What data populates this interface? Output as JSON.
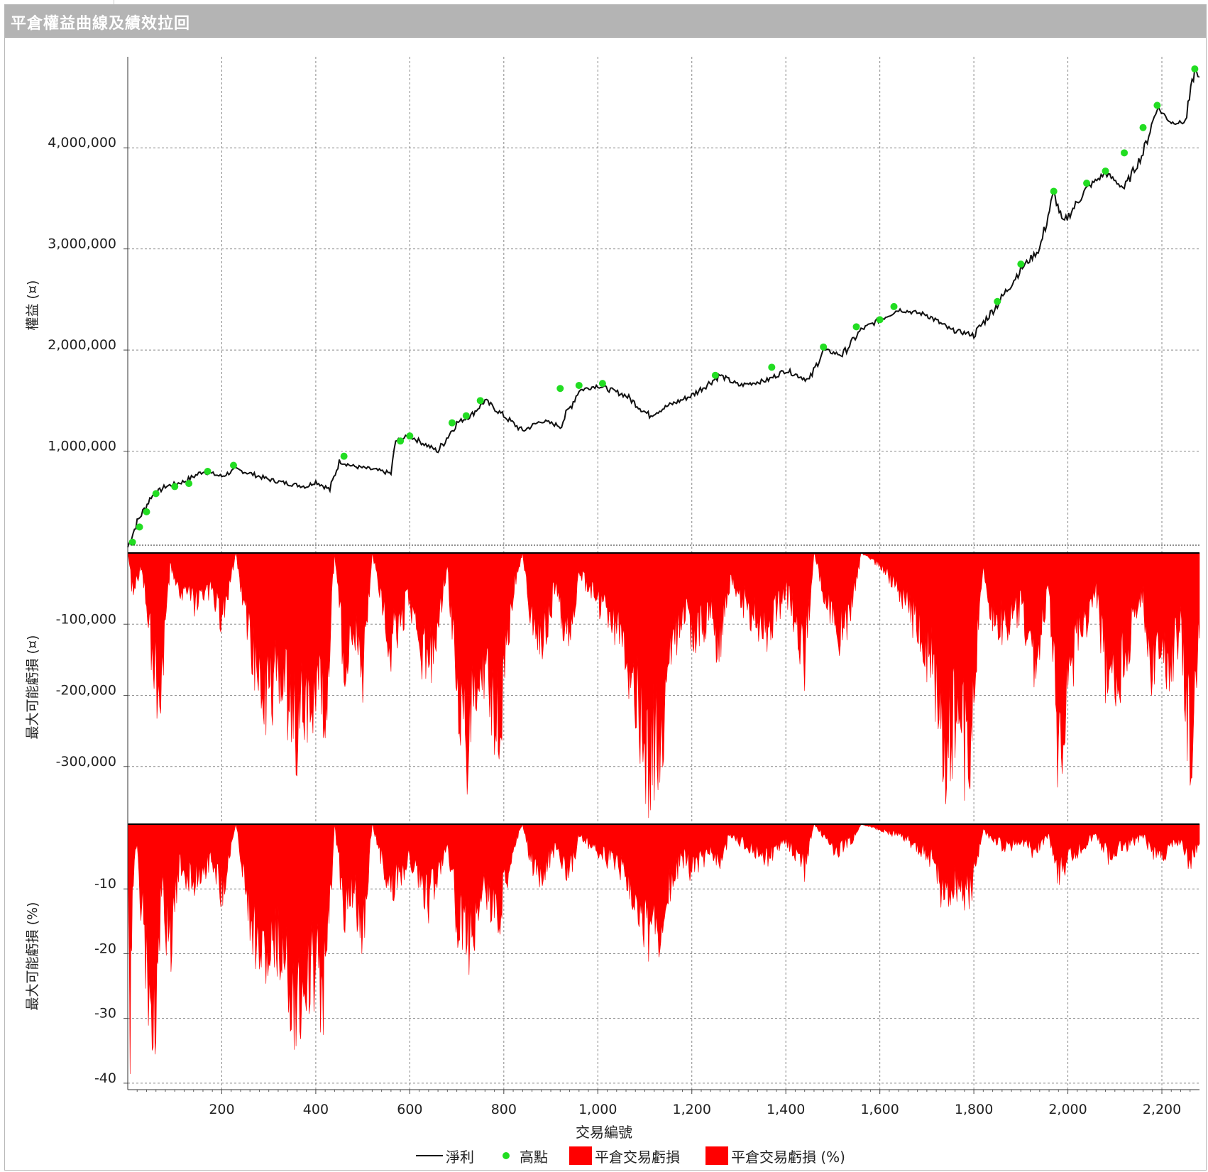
{
  "window": {
    "title": "平倉權益曲線及績效拉回"
  },
  "legend": {
    "net_profit": "淨利",
    "highs": "高點",
    "drawdown": "平倉交易虧損",
    "drawdown_pct": "平倉交易虧損 (%)"
  },
  "colors": {
    "line": "#111111",
    "highs": "#22dd22",
    "drawdown": "#ff0000",
    "grid": "#888888"
  },
  "chart_data": [
    {
      "type": "line",
      "title": "",
      "ylabel": "權益 (¤)",
      "xlabel": "交易編號",
      "xlim": [
        0,
        2280
      ],
      "ylim": [
        0,
        4900000
      ],
      "x_ticks": [
        200,
        400,
        600,
        800,
        1000,
        1200,
        1400,
        1600,
        1800,
        2000,
        2200
      ],
      "x_tick_labels": [
        "200",
        "400",
        "600",
        "800",
        "1,000",
        "1,200",
        "1,400",
        "1,600",
        "1,800",
        "2,000",
        "2,200"
      ],
      "y_ticks": [
        1000000,
        2000000,
        3000000,
        4000000
      ],
      "y_tick_labels": [
        "1,000,000",
        "2,000,000",
        "3,000,000",
        "4,000,000"
      ],
      "series": [
        {
          "name": "淨利",
          "x": [
            0,
            20,
            50,
            80,
            120,
            160,
            200,
            230,
            260,
            300,
            340,
            380,
            400,
            430,
            450,
            480,
            520,
            560,
            570,
            600,
            640,
            660,
            700,
            730,
            760,
            800,
            840,
            880,
            920,
            960,
            1000,
            1060,
            1110,
            1150,
            1200,
            1260,
            1300,
            1360,
            1400,
            1450,
            1480,
            1520,
            1560,
            1600,
            1640,
            1700,
            1750,
            1800,
            1850,
            1900,
            1940,
            1970,
            1990,
            2040,
            2080,
            2120,
            2160,
            2190,
            2220,
            2250,
            2270,
            2280
          ],
          "y": [
            50000,
            300000,
            550000,
            650000,
            700000,
            800000,
            750000,
            820000,
            780000,
            720000,
            680000,
            650000,
            700000,
            620000,
            900000,
            850000,
            820000,
            780000,
            1100000,
            1150000,
            1050000,
            1000000,
            1280000,
            1350000,
            1500000,
            1350000,
            1200000,
            1300000,
            1250000,
            1600000,
            1650000,
            1550000,
            1350000,
            1450000,
            1550000,
            1750000,
            1650000,
            1700000,
            1800000,
            1700000,
            2000000,
            1950000,
            2200000,
            2300000,
            2400000,
            2350000,
            2200000,
            2150000,
            2450000,
            2800000,
            3000000,
            3550000,
            3250000,
            3600000,
            3750000,
            3600000,
            3950000,
            4400000,
            4250000,
            4250000,
            4780000,
            4700000
          ]
        },
        {
          "name": "高點",
          "x": [
            10,
            25,
            40,
            60,
            100,
            130,
            170,
            225,
            460,
            580,
            600,
            690,
            720,
            750,
            920,
            960,
            1010,
            1250,
            1370,
            1480,
            1550,
            1600,
            1630,
            1850,
            1900,
            1970,
            2040,
            2080,
            2120,
            2160,
            2190,
            2270
          ],
          "y": [
            100000,
            250000,
            400000,
            580000,
            650000,
            680000,
            800000,
            860000,
            950000,
            1100000,
            1150000,
            1280000,
            1350000,
            1500000,
            1620000,
            1650000,
            1670000,
            1750000,
            1830000,
            2030000,
            2230000,
            2300000,
            2430000,
            2480000,
            2850000,
            3570000,
            3650000,
            3770000,
            3950000,
            4200000,
            4420000,
            4780000
          ]
        }
      ]
    },
    {
      "type": "area",
      "ylabel": "最大可能虧損 (¤)",
      "ylim": [
        -380000,
        0
      ],
      "y_ticks": [
        -100000,
        -200000,
        -300000
      ],
      "y_tick_labels": [
        "-100,000",
        "-200,000",
        "-300,000"
      ],
      "series": [
        {
          "name": "平倉交易虧損",
          "x": [
            0,
            10,
            30,
            50,
            70,
            90,
            110,
            140,
            180,
            200,
            230,
            260,
            290,
            330,
            360,
            390,
            420,
            440,
            460,
            480,
            500,
            520,
            560,
            600,
            640,
            680,
            700,
            720,
            760,
            790,
            820,
            840,
            860,
            880,
            910,
            940,
            960,
            1000,
            1040,
            1080,
            1110,
            1130,
            1150,
            1180,
            1200,
            1240,
            1260,
            1280,
            1320,
            1360,
            1400,
            1440,
            1460,
            1480,
            1510,
            1540,
            1560,
            1600,
            1640,
            1680,
            1710,
            1740,
            1760,
            1790,
            1820,
            1840,
            1870,
            1900,
            1930,
            1960,
            1980,
            2000,
            2020,
            2060,
            2090,
            2120,
            2160,
            2180,
            2200,
            2240,
            2260,
            2280
          ],
          "y": [
            0,
            -60000,
            -20000,
            -150000,
            -240000,
            -20000,
            -60000,
            -80000,
            -60000,
            -110000,
            0,
            -150000,
            -230000,
            -200000,
            -290000,
            -220000,
            -270000,
            0,
            -170000,
            -120000,
            -190000,
            0,
            -150000,
            -80000,
            -200000,
            -20000,
            -230000,
            -310000,
            -180000,
            -280000,
            -60000,
            0,
            -110000,
            -140000,
            -60000,
            -160000,
            -30000,
            -80000,
            -120000,
            -220000,
            -340000,
            -310000,
            -200000,
            -90000,
            -140000,
            -100000,
            -160000,
            -50000,
            -90000,
            -130000,
            -60000,
            -170000,
            0,
            -60000,
            -130000,
            -100000,
            0,
            -20000,
            -60000,
            -120000,
            -180000,
            -330000,
            -280000,
            -320000,
            -20000,
            -110000,
            -120000,
            -90000,
            -180000,
            -60000,
            -330000,
            -200000,
            -150000,
            -60000,
            -250000,
            -160000,
            -80000,
            -190000,
            -200000,
            -130000,
            -320000,
            -120000
          ]
        }
      ]
    },
    {
      "type": "area",
      "ylabel": "最大可能虧損 (%)",
      "ylim": [
        -41,
        0
      ],
      "y_ticks": [
        -10,
        -20,
        -30,
        -40
      ],
      "y_tick_labels": [
        "-10",
        "-20",
        "-30",
        "-40"
      ],
      "series": [
        {
          "name": "平倉交易虧損 (%)",
          "x": [
            0,
            5,
            10,
            20,
            40,
            60,
            70,
            90,
            110,
            140,
            180,
            200,
            230,
            260,
            290,
            330,
            360,
            390,
            420,
            440,
            460,
            480,
            500,
            520,
            560,
            600,
            640,
            680,
            700,
            720,
            760,
            790,
            820,
            840,
            860,
            880,
            910,
            940,
            960,
            1000,
            1040,
            1080,
            1110,
            1130,
            1150,
            1180,
            1200,
            1240,
            1260,
            1280,
            1320,
            1360,
            1400,
            1440,
            1460,
            1480,
            1510,
            1540,
            1560,
            1600,
            1640,
            1680,
            1710,
            1740,
            1760,
            1790,
            1820,
            1840,
            1870,
            1900,
            1930,
            1960,
            1980,
            2000,
            2020,
            2060,
            2090,
            2120,
            2160,
            2180,
            2200,
            2240,
            2260,
            2280
          ],
          "y": [
            0,
            -34,
            -10,
            -5,
            -26,
            -41,
            -12,
            -22,
            -8,
            -10,
            -6,
            -12,
            0,
            -16,
            -25,
            -22,
            -33,
            -25,
            -30,
            0,
            -15,
            -12,
            -20,
            0,
            -12,
            -6,
            -14,
            -3,
            -16,
            -22,
            -12,
            -17,
            -4,
            0,
            -7,
            -9,
            -4,
            -9,
            -2,
            -5,
            -7,
            -13,
            -21,
            -18,
            -12,
            -6,
            -8,
            -5,
            -7,
            -2,
            -4,
            -6,
            -3,
            -8,
            0,
            -2,
            -5,
            -3,
            0,
            -1,
            -2,
            -4,
            -6,
            -14,
            -11,
            -13,
            -1,
            -3,
            -4,
            -3,
            -5,
            -2,
            -9,
            -6,
            -5,
            -2,
            -6,
            -4,
            -2,
            -5,
            -6,
            -3,
            -7,
            -3
          ]
        }
      ]
    }
  ]
}
